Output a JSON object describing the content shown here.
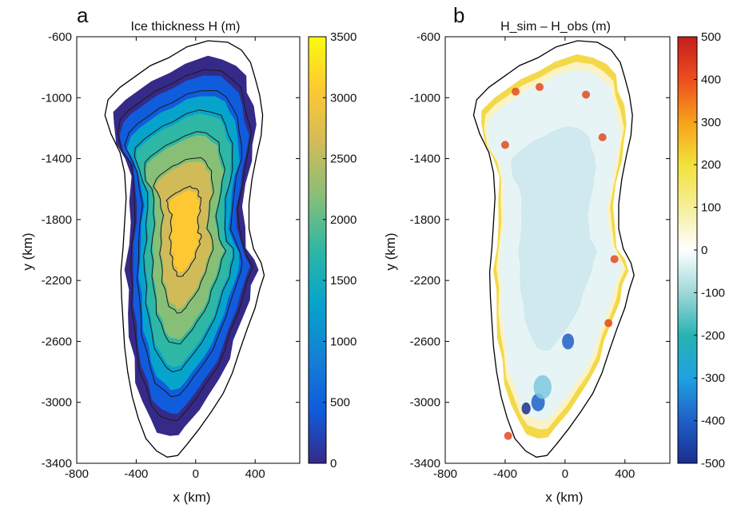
{
  "chart_data": [
    {
      "type": "heatmap",
      "panel_label": "a",
      "title": "Ice thickness H (m)",
      "xlabel": "x (km)",
      "ylabel": "y (km)",
      "xlim": [
        -800,
        700
      ],
      "ylim": [
        -3400,
        -600
      ],
      "x_ticks": [
        -800,
        -400,
        0,
        400
      ],
      "y_ticks": [
        -600,
        -1000,
        -1400,
        -1800,
        -2200,
        -2600,
        -3000,
        -3400
      ],
      "colorbar": {
        "range": [
          0,
          3500
        ],
        "ticks": [
          0,
          500,
          1000,
          1500,
          2000,
          2500,
          3000,
          3500
        ],
        "colormap": "parula",
        "colors": [
          "#352a87",
          "#0f5cdd",
          "#1481d6",
          "#06a4ca",
          "#2eb7a4",
          "#87bf77",
          "#d1bb59",
          "#fec832",
          "#f9fb0e"
        ]
      },
      "contour_levels": [
        500,
        1000,
        1500,
        2000,
        2500,
        3000
      ],
      "grid": false
    },
    {
      "type": "heatmap",
      "panel_label": "b",
      "title": "H_sim – H_obs (m)",
      "xlabel": "x (km)",
      "ylabel": "y (km)",
      "xlim": [
        -800,
        700
      ],
      "ylim": [
        -3400,
        -600
      ],
      "x_ticks": [
        -800,
        -400,
        0,
        400
      ],
      "y_ticks": [
        -600,
        -1000,
        -1400,
        -1800,
        -2200,
        -2600,
        -3000,
        -3400
      ],
      "colorbar": {
        "range": [
          -500,
          500
        ],
        "ticks": [
          -500,
          -400,
          -300,
          -200,
          -100,
          0,
          100,
          200,
          300,
          400,
          500
        ],
        "colormap": "diverging",
        "colors": [
          "#1a2e8f",
          "#1f5fc8",
          "#1fa2e0",
          "#27b3b3",
          "#9fd8d8",
          "#ffffff",
          "#f6ee9a",
          "#f3e23a",
          "#f6a11c",
          "#ee4d1e",
          "#c51d1d"
        ]
      },
      "grid": false
    }
  ]
}
